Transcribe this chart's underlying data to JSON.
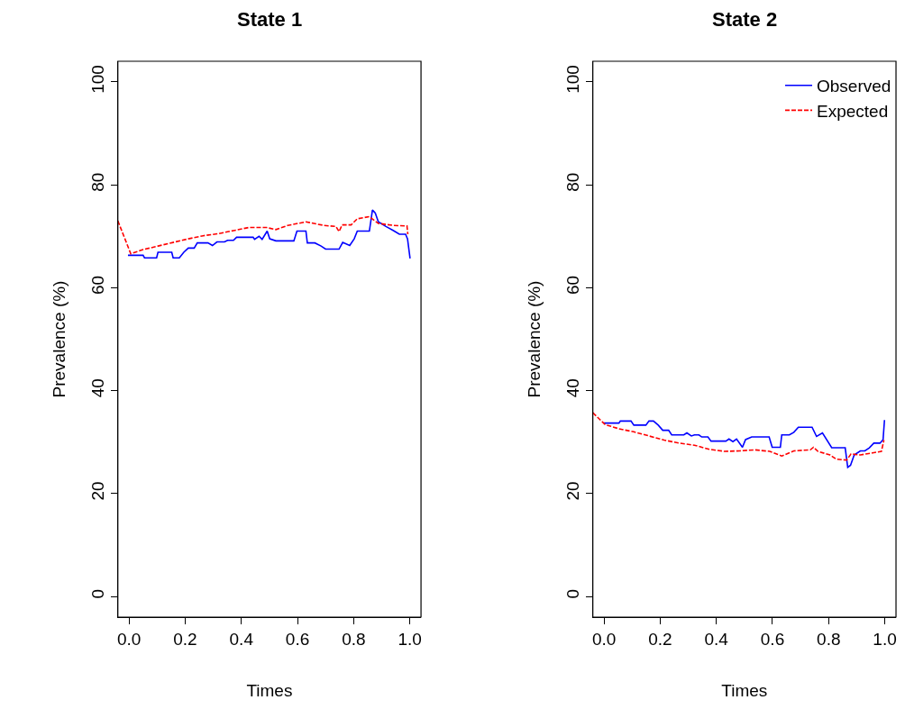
{
  "chart_data": [
    {
      "type": "line",
      "title": "State 1",
      "xlabel": "Times",
      "ylabel": "Prevalence (%)",
      "xlim": [
        -0.04,
        1.04
      ],
      "ylim": [
        -4,
        104
      ],
      "xticks": [
        {
          "value": 0,
          "label": "0.0"
        },
        {
          "value": 0.2,
          "label": "0.2"
        },
        {
          "value": 0.4,
          "label": "0.4"
        },
        {
          "value": 0.6,
          "label": "0.6"
        },
        {
          "value": 0.8,
          "label": "0.8"
        },
        {
          "value": 1,
          "label": "1.0"
        }
      ],
      "yticks": [
        0,
        20,
        40,
        60,
        80,
        100
      ],
      "legend": false,
      "series": [
        {
          "color": "#0000ff",
          "line_style": "solid",
          "x": [
            -0.004,
            0.05,
            0.055,
            0.098,
            0.103,
            0.152,
            0.157,
            0.179,
            0.195,
            0.211,
            0.232,
            0.243,
            0.281,
            0.297,
            0.313,
            0.34,
            0.351,
            0.372,
            0.383,
            0.442,
            0.447,
            0.463,
            0.474,
            0.492,
            0.501,
            0.523,
            0.587,
            0.598,
            0.63,
            0.635,
            0.662,
            0.684,
            0.7,
            0.748,
            0.761,
            0.786,
            0.802,
            0.813,
            0.856,
            0.867,
            0.877,
            0.888,
            0.915,
            0.942,
            0.963,
            0.985,
            0.992,
            1.001
          ],
          "values": [
            66.3,
            66.3,
            65.8,
            65.8,
            66.9,
            66.9,
            65.8,
            65.8,
            66.9,
            67.7,
            67.7,
            68.7,
            68.7,
            68.2,
            68.9,
            68.9,
            69.2,
            69.2,
            69.8,
            69.8,
            69.4,
            70.0,
            69.4,
            71.0,
            69.5,
            69.1,
            69.1,
            71.0,
            71.0,
            68.7,
            68.7,
            68.1,
            67.5,
            67.5,
            68.8,
            68.2,
            69.5,
            71.0,
            71.0,
            75.1,
            74.5,
            72.8,
            71.9,
            71.1,
            70.4,
            70.4,
            69.5,
            65.7
          ]
        },
        {
          "color": "#ff0000",
          "line_style": "dashed",
          "x": [
            -0.04,
            0.006,
            0.05,
            0.103,
            0.157,
            0.211,
            0.264,
            0.318,
            0.372,
            0.426,
            0.49,
            0.523,
            0.565,
            0.63,
            0.694,
            0.737,
            0.748,
            0.759,
            0.791,
            0.813,
            0.856,
            0.888,
            0.942,
            0.99,
            0.993
          ],
          "values": [
            73.0,
            66.6,
            67.4,
            68.1,
            68.8,
            69.5,
            70.1,
            70.5,
            71.1,
            71.7,
            71.7,
            71.3,
            72.1,
            72.8,
            72.1,
            71.9,
            70.9,
            72.2,
            72.2,
            73.4,
            73.8,
            72.5,
            72.1,
            72.0,
            70.4
          ]
        }
      ]
    },
    {
      "type": "line",
      "title": "State 2",
      "xlabel": "Times",
      "ylabel": "Prevalence (%)",
      "xlim": [
        -0.04,
        1.04
      ],
      "ylim": [
        -4,
        104
      ],
      "xticks": [
        {
          "value": 0,
          "label": "0.0"
        },
        {
          "value": 0.2,
          "label": "0.2"
        },
        {
          "value": 0.4,
          "label": "0.4"
        },
        {
          "value": 0.6,
          "label": "0.6"
        },
        {
          "value": 0.8,
          "label": "0.8"
        },
        {
          "value": 1,
          "label": "1.0"
        }
      ],
      "yticks": [
        0,
        20,
        40,
        60,
        80,
        100
      ],
      "legend": "top right",
      "series": [
        {
          "name": "Observed",
          "color": "#0000ff",
          "line_style": "solid",
          "x": [
            -0.001,
            0.053,
            0.058,
            0.096,
            0.106,
            0.149,
            0.16,
            0.176,
            0.193,
            0.209,
            0.23,
            0.241,
            0.284,
            0.295,
            0.311,
            0.322,
            0.338,
            0.348,
            0.37,
            0.381,
            0.434,
            0.445,
            0.459,
            0.472,
            0.493,
            0.504,
            0.526,
            0.588,
            0.599,
            0.628,
            0.633,
            0.66,
            0.676,
            0.692,
            0.741,
            0.757,
            0.778,
            0.811,
            0.859,
            0.868,
            0.878,
            0.891,
            0.913,
            0.929,
            0.945,
            0.961,
            0.983,
            0.994,
            0.999
          ],
          "values": [
            33.7,
            33.7,
            34.1,
            34.1,
            33.3,
            33.3,
            34.1,
            34.1,
            33.3,
            32.3,
            32.3,
            31.4,
            31.4,
            31.8,
            31.2,
            31.4,
            31.4,
            31.0,
            31.0,
            30.2,
            30.2,
            30.6,
            30.1,
            30.6,
            29.0,
            30.5,
            31.0,
            31.0,
            29.0,
            29.0,
            31.4,
            31.4,
            31.9,
            32.9,
            32.9,
            31.1,
            31.8,
            28.9,
            28.9,
            25.1,
            25.5,
            27.5,
            28.3,
            28.3,
            28.9,
            29.8,
            29.8,
            30.5,
            34.3
          ]
        },
        {
          "name": "Expected",
          "color": "#ff0000",
          "line_style": "dashed",
          "x": [
            -0.04,
            0.004,
            0.053,
            0.106,
            0.16,
            0.214,
            0.268,
            0.322,
            0.375,
            0.429,
            0.483,
            0.537,
            0.59,
            0.633,
            0.676,
            0.735,
            0.746,
            0.762,
            0.805,
            0.827,
            0.864,
            0.88,
            0.913,
            0.956,
            0.988,
            0.997
          ],
          "values": [
            35.7,
            33.4,
            32.6,
            32.0,
            31.2,
            30.4,
            29.8,
            29.4,
            28.6,
            28.2,
            28.3,
            28.5,
            28.2,
            27.3,
            28.3,
            28.5,
            29.0,
            28.2,
            27.5,
            26.7,
            26.5,
            27.7,
            27.5,
            27.9,
            28.2,
            30.4
          ]
        }
      ]
    }
  ]
}
